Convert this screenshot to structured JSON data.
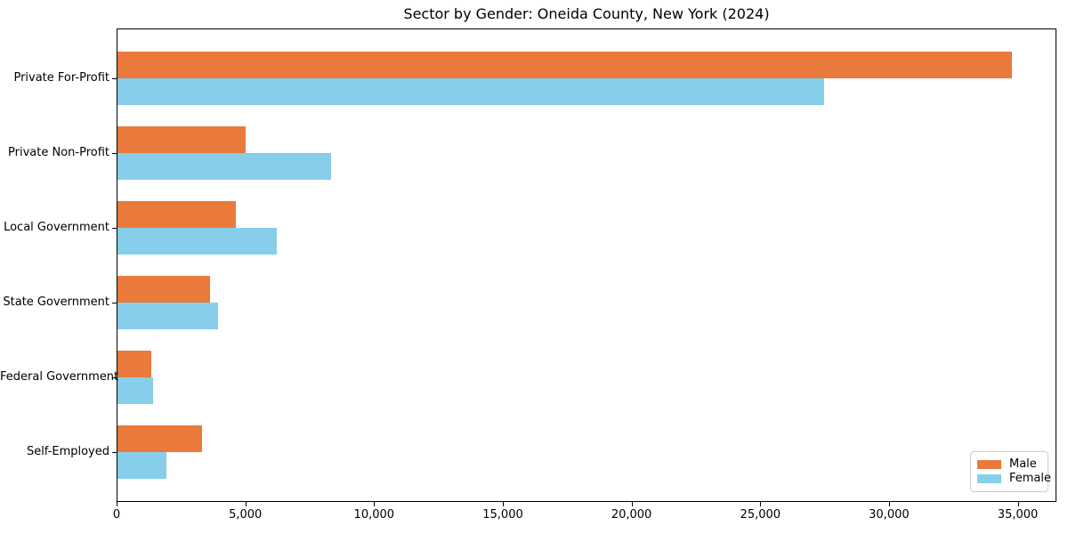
{
  "chart_data": {
    "type": "bar",
    "orientation": "horizontal",
    "title": "Sector by Gender: Oneida County, New York (2024)",
    "categories": [
      "Private For-Profit",
      "Private Non-Profit",
      "Local Government",
      "State Government",
      "Federal Government",
      "Self-Employed"
    ],
    "series": [
      {
        "name": "Male",
        "color": "#E97A3C",
        "values": [
          34800,
          5000,
          4600,
          3600,
          1300,
          3300
        ]
      },
      {
        "name": "Female",
        "color": "#87CEEB",
        "values": [
          27500,
          8300,
          6200,
          3900,
          1400,
          1900
        ]
      }
    ],
    "xlabel": "",
    "ylabel": "",
    "xlim": [
      0,
      36500
    ],
    "xticks": [
      0,
      5000,
      10000,
      15000,
      20000,
      25000,
      30000,
      35000
    ],
    "xtick_labels": [
      "0",
      "5,000",
      "10,000",
      "15,000",
      "20,000",
      "25,000",
      "30,000",
      "35,000"
    ],
    "grid": false,
    "background": "#FFFFFF",
    "axis_color": "#000000",
    "legend": {
      "position": "lower right",
      "entries": [
        "Male",
        "Female"
      ]
    }
  }
}
